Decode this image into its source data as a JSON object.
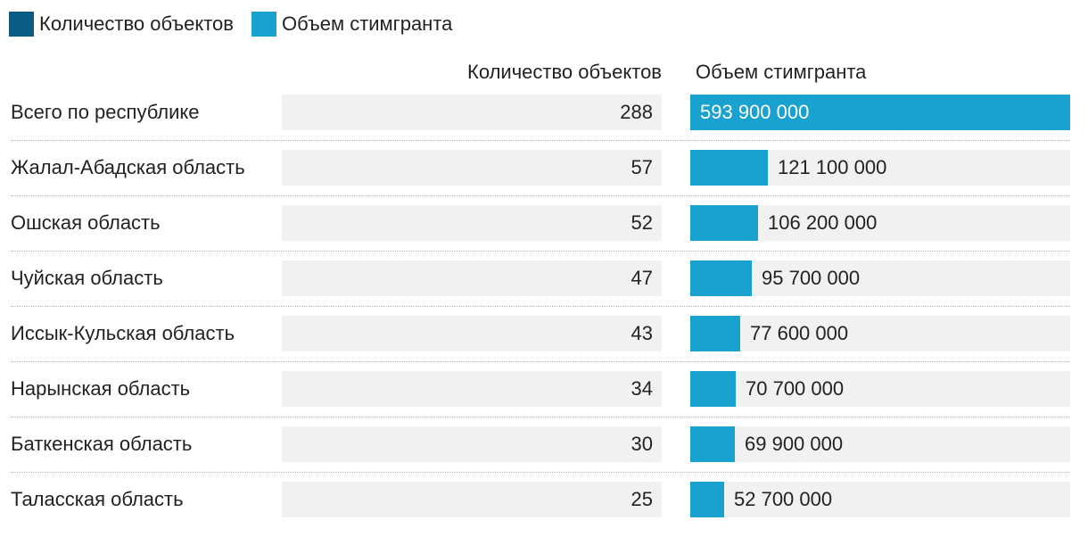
{
  "legend": [
    {
      "label": "Количество объектов",
      "color": "#0b5c85"
    },
    {
      "label": "Объем стимгранта",
      "color": "#19a2cf"
    }
  ],
  "chart_data": {
    "type": "table",
    "columns": [
      "Количество объектов",
      "Объем стимгранта"
    ],
    "rows": [
      {
        "region": "Всего по республике",
        "count": 288,
        "count_label": "288",
        "volume": 593900000,
        "volume_label": "593 900 000"
      },
      {
        "region": "Жалал-Абадская область",
        "count": 57,
        "count_label": "57",
        "volume": 121100000,
        "volume_label": "121 100 000"
      },
      {
        "region": "Ошская область",
        "count": 52,
        "count_label": "52",
        "volume": 106200000,
        "volume_label": "106 200 000"
      },
      {
        "region": "Чуйская область",
        "count": 47,
        "count_label": "47",
        "volume": 95700000,
        "volume_label": "95 700 000"
      },
      {
        "region": "Иссык-Кульская область",
        "count": 43,
        "count_label": "43",
        "volume": 77600000,
        "volume_label": "77 600 000"
      },
      {
        "region": "Нарынская область",
        "count": 34,
        "count_label": "34",
        "volume": 70700000,
        "volume_label": "70 700 000"
      },
      {
        "region": "Баткенская область",
        "count": 30,
        "count_label": "30",
        "volume": 69900000,
        "volume_label": "69 900 000"
      },
      {
        "region": "Таласская область",
        "count": 25,
        "count_label": "25",
        "volume": 52700000,
        "volume_label": "52 700 000"
      }
    ],
    "volume_max": 593900000,
    "bar_color": "#19a2cf",
    "cell_color": "#f1f1f1"
  }
}
